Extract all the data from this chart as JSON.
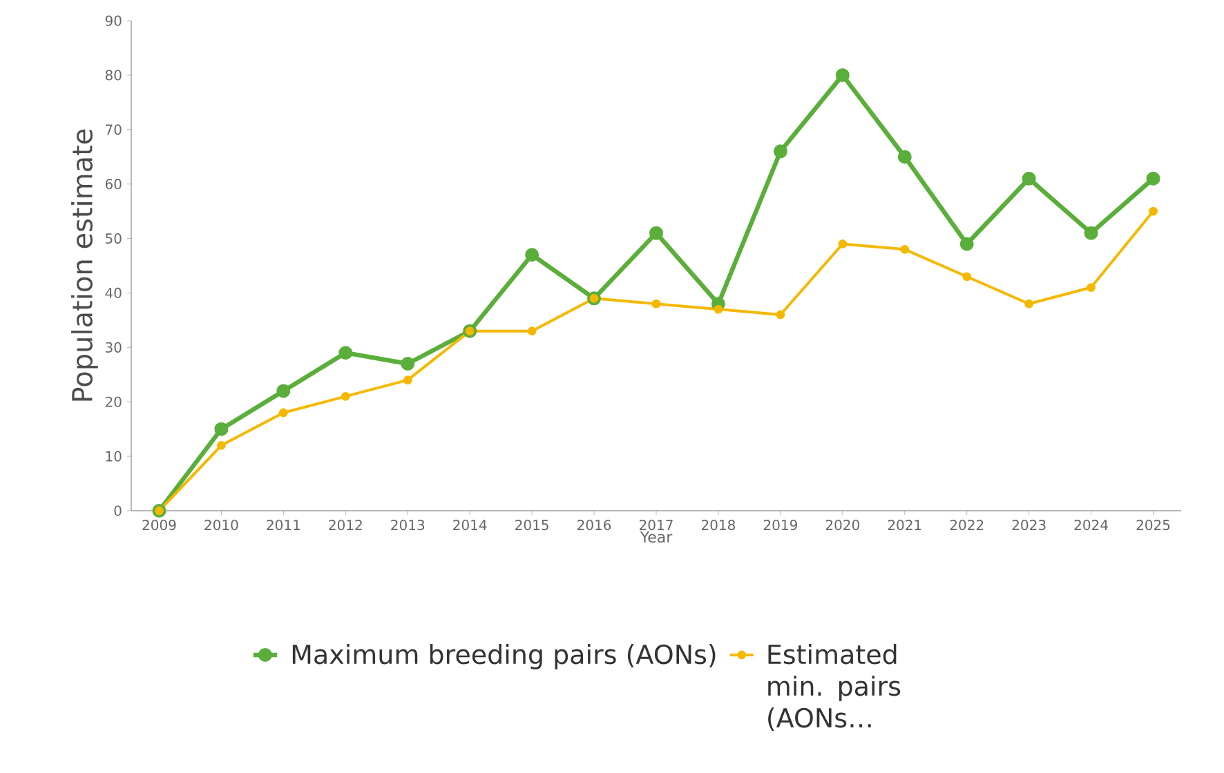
{
  "chart_data": {
    "type": "line",
    "xlabel": "Year",
    "ylabel": "Population estimate",
    "categories": [
      "2009",
      "2010",
      "2011",
      "2012",
      "2013",
      "2014",
      "2015",
      "2016",
      "2017",
      "2018",
      "2019",
      "2020",
      "2021",
      "2022",
      "2023",
      "2024",
      "2025"
    ],
    "series": [
      {
        "name": "Maximum breeding pairs (AONs)",
        "color": "#5aae3a",
        "values": [
          0,
          15,
          22,
          29,
          27,
          33,
          47,
          39,
          51,
          38,
          66,
          80,
          65,
          49,
          61,
          51,
          61
        ]
      },
      {
        "name": "Estimated min. pairs (AONs…",
        "color": "#f5b800",
        "values": [
          0,
          12,
          18,
          21,
          24,
          33,
          33,
          39,
          38,
          37,
          36,
          49,
          48,
          43,
          38,
          41,
          55
        ]
      }
    ],
    "ylim": [
      0,
      90
    ],
    "yticks": [
      0,
      10,
      20,
      30,
      40,
      50,
      60,
      70,
      80,
      90
    ],
    "legend": "bottom",
    "marker": "circle",
    "line_style": "solid"
  }
}
